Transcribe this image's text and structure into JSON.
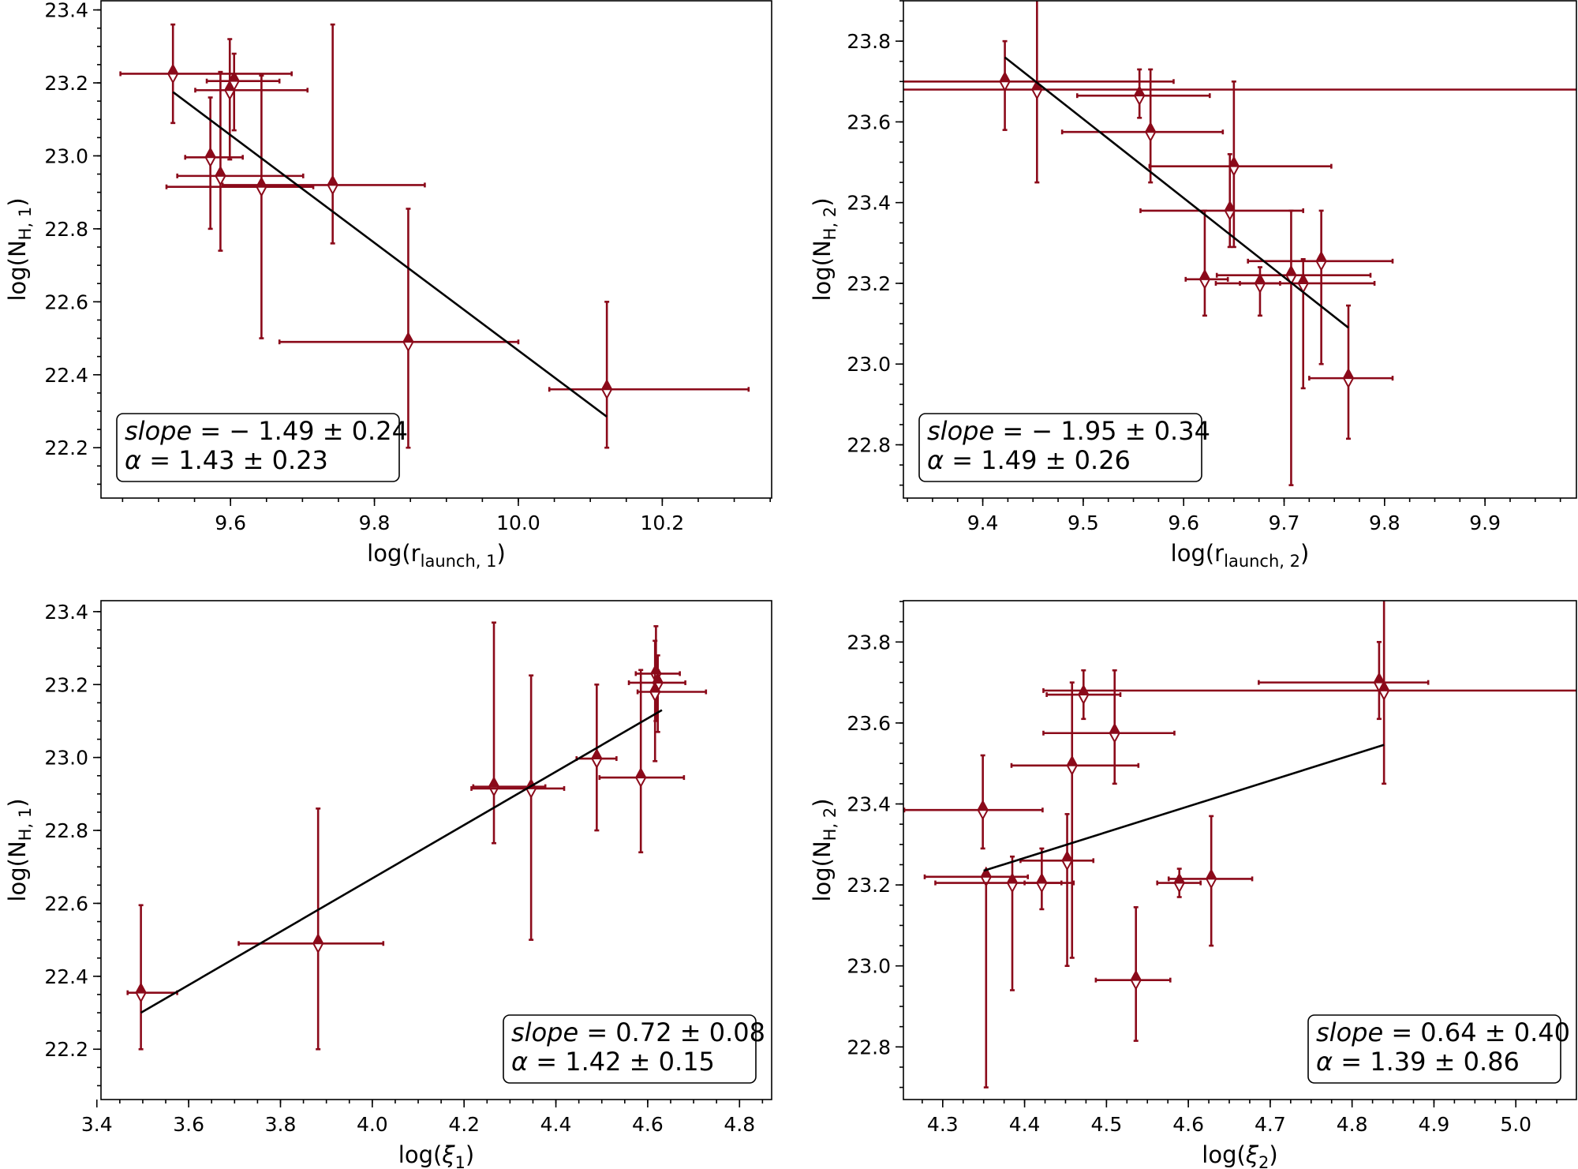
{
  "colors": {
    "points": "#8b0a1a",
    "fit_line": "#000000"
  },
  "chart_data": [
    {
      "type": "scatter",
      "marker": "diamond-top-filled",
      "xlabel": {
        "pre": "log(r",
        "sub": "launch, 1",
        "post": ")"
      },
      "ylabel": {
        "pre": "log(N",
        "sub": "H, 1",
        "post": ")"
      },
      "xlim": [
        9.42,
        10.352
      ],
      "ylim": [
        22.062,
        23.425
      ],
      "xticks": [
        "9.6",
        "9.8",
        "10.0",
        "10.2"
      ],
      "yticks": [
        "22.2",
        "22.4",
        "22.6",
        "22.8",
        "23.0",
        "23.2",
        "23.4"
      ],
      "x_minor_step": 0.05,
      "y_minor_step": 0.05,
      "legend": "bottom-left",
      "annotation": {
        "line1_var": "slope",
        "line1_val": " = − 1.49 ± 0.24",
        "line2_var": "α",
        "line2_val": " = 1.43 ± 0.23"
      },
      "fit": {
        "x": [
          9.52,
          10.123
        ],
        "y": [
          23.175,
          22.285
        ]
      },
      "points": [
        {
          "x": 9.52,
          "y": 23.225,
          "x_range": [
            9.447,
            9.685
          ],
          "y_range": [
            23.09,
            23.36
          ]
        },
        {
          "x": 9.572,
          "y": 22.996,
          "x_range": [
            9.537,
            9.617
          ],
          "y_range": [
            22.8,
            23.16
          ]
        },
        {
          "x": 9.586,
          "y": 22.945,
          "x_range": [
            9.526,
            9.701
          ],
          "y_range": [
            22.74,
            23.23
          ]
        },
        {
          "x": 9.599,
          "y": 23.18,
          "x_range": [
            9.551,
            9.707
          ],
          "y_range": [
            22.99,
            23.32
          ]
        },
        {
          "x": 9.605,
          "y": 23.205,
          "x_range": [
            9.567,
            9.668
          ],
          "y_range": [
            23.07,
            23.28
          ]
        },
        {
          "x": 9.643,
          "y": 22.915,
          "x_range": [
            9.511,
            9.715
          ],
          "y_range": [
            22.5,
            23.22
          ]
        },
        {
          "x": 9.742,
          "y": 22.92,
          "x_range": [
            9.589,
            9.87
          ],
          "y_range": [
            22.76,
            23.36
          ]
        },
        {
          "x": 9.847,
          "y": 22.49,
          "x_range": [
            9.668,
            10.0
          ],
          "y_range": [
            22.2,
            22.855
          ]
        },
        {
          "x": 10.123,
          "y": 22.36,
          "x_range": [
            10.043,
            10.32
          ],
          "y_range": [
            22.2,
            22.6
          ]
        }
      ]
    },
    {
      "type": "scatter",
      "marker": "diamond-top-filled",
      "xlabel": {
        "pre": "log(r",
        "sub": "launch, 2",
        "post": ")"
      },
      "ylabel": {
        "pre": "log(N",
        "sub": "H, 2",
        "post": ")"
      },
      "xlim": [
        9.321,
        9.991
      ],
      "ylim": [
        22.668,
        23.9
      ],
      "xticks": [
        "9.4",
        "9.5",
        "9.6",
        "9.7",
        "9.8",
        "9.9"
      ],
      "yticks": [
        "22.8",
        "23.0",
        "23.2",
        "23.4",
        "23.6",
        "23.8"
      ],
      "x_minor_step": 0.025,
      "y_minor_step": 0.05,
      "legend": "bottom-left",
      "annotation": {
        "line1_var": "slope",
        "line1_val": " = − 1.95 ± 0.34",
        "line2_var": "α",
        "line2_val": " = 1.49 ± 0.26"
      },
      "fit": {
        "x": [
          9.422,
          9.764
        ],
        "y": [
          23.76,
          23.09
        ]
      },
      "points": [
        {
          "x": 9.422,
          "y": 23.7,
          "x_range": [
            9.3,
            9.59
          ],
          "y_range": [
            23.58,
            23.8
          ]
        },
        {
          "x": 9.454,
          "y": 23.68,
          "x_range": [
            9.0,
            10.2
          ],
          "y_range": [
            23.45,
            24.1
          ]
        },
        {
          "x": 9.556,
          "y": 23.665,
          "x_range": [
            9.494,
            9.626
          ],
          "y_range": [
            23.61,
            23.73
          ]
        },
        {
          "x": 9.567,
          "y": 23.575,
          "x_range": [
            9.479,
            9.639
          ],
          "y_range": [
            23.45,
            23.73
          ]
        },
        {
          "x": 9.65,
          "y": 23.49,
          "x_range": [
            9.566,
            9.747
          ],
          "y_range": [
            23.29,
            23.7
          ]
        },
        {
          "x": 9.646,
          "y": 23.38,
          "x_range": [
            9.557,
            9.719
          ],
          "y_range": [
            23.29,
            23.52
          ]
        },
        {
          "x": 9.621,
          "y": 23.21,
          "x_range": [
            9.602,
            9.644
          ],
          "y_range": [
            23.12,
            23.38
          ]
        },
        {
          "x": 9.676,
          "y": 23.2,
          "x_range": [
            9.656,
            9.696
          ],
          "y_range": [
            23.12,
            23.24
          ]
        },
        {
          "x": 9.707,
          "y": 23.22,
          "x_range": [
            9.633,
            9.786
          ],
          "y_range": [
            22.7,
            23.38
          ]
        },
        {
          "x": 9.719,
          "y": 23.2,
          "x_range": [
            9.632,
            9.79
          ],
          "y_range": [
            22.94,
            23.26
          ]
        },
        {
          "x": 9.737,
          "y": 23.255,
          "x_range": [
            9.664,
            9.808
          ],
          "y_range": [
            23.0,
            23.38
          ]
        },
        {
          "x": 9.764,
          "y": 22.965,
          "x_range": [
            9.725,
            9.808
          ],
          "y_range": [
            22.815,
            23.145
          ]
        }
      ]
    },
    {
      "type": "scatter",
      "marker": "diamond-top-filled",
      "xlabel": {
        "pre": "log(",
        "sub": "1",
        "post": ")",
        "var": "ξ"
      },
      "ylabel": {
        "pre": "log(N",
        "sub": "H, 1",
        "post": ")"
      },
      "xlim": [
        3.409,
        4.87
      ],
      "ylim": [
        22.062,
        23.43
      ],
      "xticks": [
        "3.4",
        "3.6",
        "3.8",
        "4.0",
        "4.2",
        "4.4",
        "4.6",
        "4.8"
      ],
      "yticks": [
        "22.2",
        "22.4",
        "22.6",
        "22.8",
        "23.0",
        "23.2",
        "23.4"
      ],
      "x_minor_step": 0.05,
      "y_minor_step": 0.05,
      "legend": "bottom-right",
      "annotation": {
        "line1_var": "slope",
        "line1_val": " = 0.72 ± 0.08",
        "line2_var": "α",
        "line2_val": " = 1.42 ± 0.15"
      },
      "fit": {
        "x": [
          3.496,
          4.631
        ],
        "y": [
          22.3,
          23.13
        ]
      },
      "points": [
        {
          "x": 3.496,
          "y": 22.355,
          "x_range": [
            3.467,
            3.575
          ],
          "y_range": [
            22.2,
            22.595
          ]
        },
        {
          "x": 3.882,
          "y": 22.49,
          "x_range": [
            3.709,
            4.024
          ],
          "y_range": [
            22.2,
            22.86
          ]
        },
        {
          "x": 4.265,
          "y": 22.92,
          "x_range": [
            4.22,
            4.377
          ],
          "y_range": [
            22.765,
            23.37
          ]
        },
        {
          "x": 4.346,
          "y": 22.915,
          "x_range": [
            4.216,
            4.418
          ],
          "y_range": [
            22.5,
            23.225
          ]
        },
        {
          "x": 4.489,
          "y": 22.997,
          "x_range": [
            4.445,
            4.532
          ],
          "y_range": [
            22.8,
            23.2
          ]
        },
        {
          "x": 4.585,
          "y": 22.945,
          "x_range": [
            4.495,
            4.679
          ],
          "y_range": [
            22.74,
            23.24
          ]
        },
        {
          "x": 4.618,
          "y": 23.23,
          "x_range": [
            4.574,
            4.67
          ],
          "y_range": [
            23.1,
            23.36
          ]
        },
        {
          "x": 4.622,
          "y": 23.205,
          "x_range": [
            4.559,
            4.682
          ],
          "y_range": [
            23.07,
            23.28
          ]
        },
        {
          "x": 4.616,
          "y": 23.18,
          "x_range": [
            4.578,
            4.727
          ],
          "y_range": [
            22.99,
            23.32
          ]
        }
      ]
    },
    {
      "type": "scatter",
      "marker": "diamond-top-filled",
      "xlabel": {
        "pre": "log(",
        "sub": "2",
        "post": ")",
        "var": "ξ"
      },
      "ylabel": {
        "pre": "log(N",
        "sub": "H, 2",
        "post": ")"
      },
      "xlim": [
        4.252,
        5.074
      ],
      "ylim": [
        22.67,
        23.902
      ],
      "xticks": [
        "4.3",
        "4.4",
        "4.5",
        "4.6",
        "4.7",
        "4.8",
        "4.9",
        "5.0"
      ],
      "yticks": [
        "22.8",
        "23.0",
        "23.2",
        "23.4",
        "23.6",
        "23.8"
      ],
      "x_minor_step": 0.025,
      "y_minor_step": 0.05,
      "legend": "bottom-right",
      "annotation": {
        "line1_var": "slope",
        "line1_val": " = 0.64 ± 0.40",
        "line2_var": "α",
        "line2_val": " = 1.39 ± 0.86"
      },
      "fit": {
        "x": [
          4.35,
          4.839
        ],
        "y": [
          23.235,
          23.546
        ]
      },
      "points": [
        {
          "x": 4.349,
          "y": 23.385,
          "x_range": [
            4.253,
            4.422
          ],
          "y_range": [
            23.29,
            23.52
          ]
        },
        {
          "x": 4.353,
          "y": 23.22,
          "x_range": [
            4.278,
            4.404
          ],
          "y_range": [
            22.7,
            23.235
          ]
        },
        {
          "x": 4.385,
          "y": 23.205,
          "x_range": [
            4.291,
            4.46
          ],
          "y_range": [
            22.94,
            23.27
          ]
        },
        {
          "x": 4.421,
          "y": 23.205,
          "x_range": [
            4.4,
            4.445
          ],
          "y_range": [
            23.14,
            23.29
          ]
        },
        {
          "x": 4.452,
          "y": 23.26,
          "x_range": [
            4.395,
            4.484
          ],
          "y_range": [
            23.0,
            23.375
          ]
        },
        {
          "x": 4.458,
          "y": 23.495,
          "x_range": [
            4.384,
            4.539
          ],
          "y_range": [
            23.02,
            23.7
          ]
        },
        {
          "x": 4.472,
          "y": 23.67,
          "x_range": [
            4.427,
            4.517
          ],
          "y_range": [
            23.61,
            23.73
          ]
        },
        {
          "x": 4.51,
          "y": 23.575,
          "x_range": [
            4.423,
            4.583
          ],
          "y_range": [
            23.45,
            23.73
          ]
        },
        {
          "x": 4.536,
          "y": 22.965,
          "x_range": [
            4.487,
            4.578
          ],
          "y_range": [
            22.815,
            23.145
          ]
        },
        {
          "x": 4.589,
          "y": 23.205,
          "x_range": [
            4.562,
            4.615
          ],
          "y_range": [
            23.17,
            23.24
          ]
        },
        {
          "x": 4.628,
          "y": 23.215,
          "x_range": [
            4.576,
            4.678
          ],
          "y_range": [
            23.05,
            23.37
          ]
        },
        {
          "x": 4.833,
          "y": 23.7,
          "x_range": [
            4.686,
            4.893
          ],
          "y_range": [
            23.61,
            23.8
          ]
        },
        {
          "x": 4.839,
          "y": 23.68,
          "x_range": [
            4.423,
            5.3
          ],
          "y_range": [
            23.45,
            24.1
          ]
        }
      ]
    }
  ]
}
